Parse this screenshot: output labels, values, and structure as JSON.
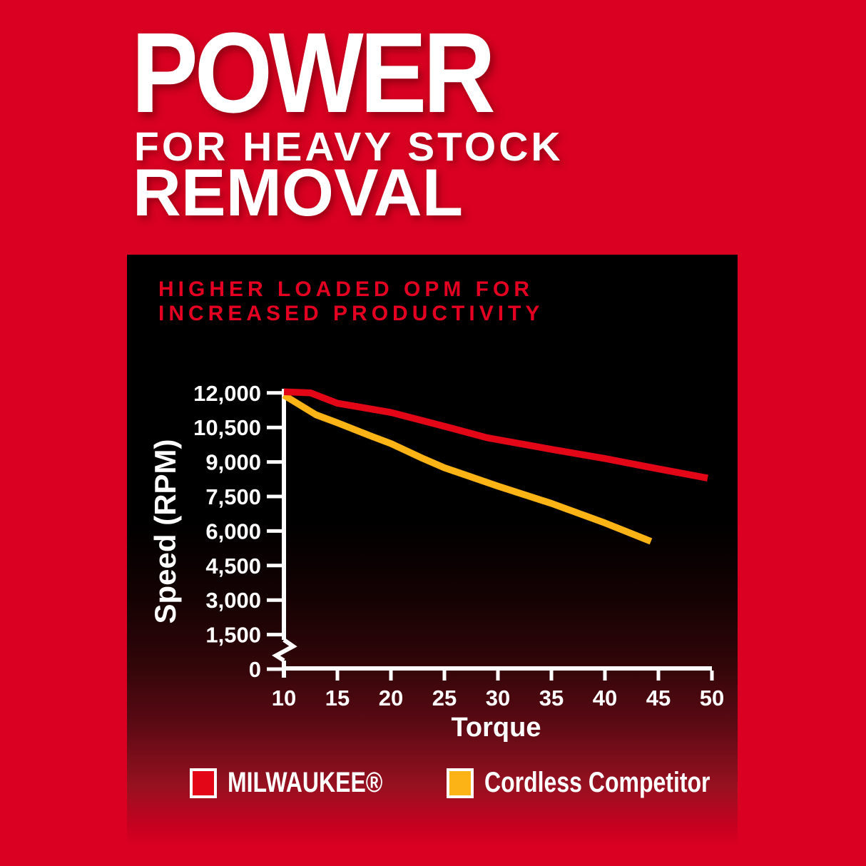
{
  "heading": {
    "line1": "POWER",
    "line2": "FOR HEAVY STOCK",
    "line3": "REMOVAL"
  },
  "colors": {
    "background_red": "#d90021",
    "panel_black": "#000000",
    "title_red": "#e30021",
    "milwaukee_red": "#e30617",
    "competitor_yellow": "#fbb316",
    "axis_white": "#ffffff"
  },
  "chart_data": {
    "type": "line",
    "title_line1": "HIGHER LOADED OPM FOR",
    "title_line2": "INCREASED PRODUCTIVITY",
    "xlabel": "Torque",
    "ylabel": "Speed (RPM)",
    "xlim": [
      10,
      50
    ],
    "ylim": [
      0,
      12000
    ],
    "x_ticks": [
      10,
      15,
      20,
      25,
      30,
      35,
      40,
      45,
      50
    ],
    "x_tick_labels": [
      "10",
      "15",
      "20",
      "25",
      "30",
      "35",
      "40",
      "45",
      "50"
    ],
    "y_ticks": [
      0,
      1500,
      3000,
      4500,
      6000,
      7500,
      9000,
      10500,
      12000
    ],
    "y_tick_labels": [
      "0",
      "1,500",
      "3,000",
      "4,500",
      "6,000",
      "7,500",
      "9,000",
      "10,500",
      "12,000"
    ],
    "y_axis_break_between": [
      0,
      1500
    ],
    "grid": false,
    "legend_position": "bottom",
    "series": [
      {
        "name": "Cordless Competitor",
        "color": "#fbb316",
        "points": [
          [
            10,
            11900
          ],
          [
            13,
            11050
          ],
          [
            15,
            10700
          ],
          [
            18,
            10150
          ],
          [
            20,
            9800
          ],
          [
            23,
            9150
          ],
          [
            25,
            8750
          ],
          [
            30,
            7950
          ],
          [
            35,
            7200
          ],
          [
            40,
            6350
          ],
          [
            44.3,
            5550
          ]
        ]
      },
      {
        "name": "MILWAUKEE®",
        "color": "#e30617",
        "points": [
          [
            10,
            12050
          ],
          [
            12.5,
            12000
          ],
          [
            15,
            11550
          ],
          [
            20,
            11150
          ],
          [
            25,
            10550
          ],
          [
            29,
            10050
          ],
          [
            35,
            9550
          ],
          [
            40,
            9150
          ],
          [
            45,
            8700
          ],
          [
            49.6,
            8300
          ]
        ]
      }
    ]
  },
  "legend": {
    "milwaukee_label": "MILWAUKEE®",
    "competitor_label": "Cordless Competitor"
  }
}
